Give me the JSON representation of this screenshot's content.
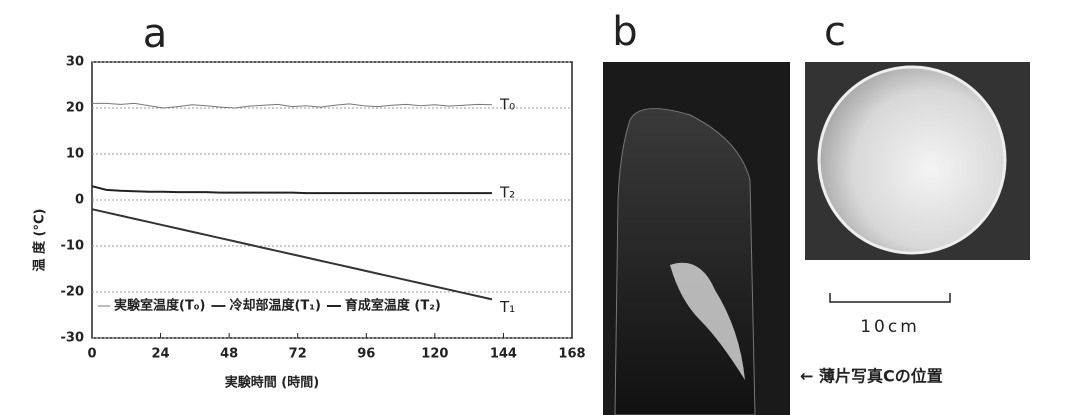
{
  "chart_data": {
    "type": "line",
    "title": "a",
    "xlabel": "実験時間 (時間)",
    "ylabel": "温 度 (°C)",
    "x": [
      0,
      5,
      10,
      15,
      20,
      25,
      30,
      35,
      40,
      45,
      50,
      55,
      60,
      65,
      70,
      75,
      80,
      85,
      90,
      95,
      100,
      105,
      110,
      115,
      120,
      125,
      130,
      135,
      140
    ],
    "series": [
      {
        "name": "T₀",
        "label": "実験室温度(T₀)",
        "color": "#777777",
        "values": [
          21,
          21,
          20.8,
          21,
          20.5,
          20,
          20.3,
          20.7,
          20.5,
          20.2,
          20,
          20.4,
          20.6,
          20.8,
          20.3,
          20.5,
          20.2,
          20.6,
          20.9,
          20.5,
          20.3,
          20.6,
          20.8,
          20.5,
          20.7,
          20.4,
          20.6,
          20.8,
          20.7
        ]
      },
      {
        "name": "T₁",
        "label": "冷却部温度(T₁)",
        "color": "#333333",
        "values": [
          -2,
          -2.7,
          -3.4,
          -4.1,
          -4.8,
          -5.5,
          -6.2,
          -6.9,
          -7.6,
          -8.3,
          -9,
          -9.7,
          -10.4,
          -11.1,
          -11.8,
          -12.5,
          -13.2,
          -13.9,
          -14.6,
          -15.3,
          -16,
          -16.7,
          -17.4,
          -18.1,
          -18.8,
          -19.5,
          -20.2,
          -20.9,
          -21.6
        ]
      },
      {
        "name": "T₂",
        "label": "育成室温度 (T₂)",
        "color": "#222222",
        "values": [
          3,
          2.2,
          2,
          1.9,
          1.8,
          1.8,
          1.7,
          1.7,
          1.7,
          1.6,
          1.6,
          1.6,
          1.6,
          1.6,
          1.6,
          1.5,
          1.5,
          1.5,
          1.5,
          1.5,
          1.5,
          1.5,
          1.5,
          1.5,
          1.5,
          1.5,
          1.5,
          1.5,
          1.5
        ]
      }
    ],
    "xlim": [
      0,
      168
    ],
    "xticks": [
      0,
      24,
      48,
      72,
      96,
      120,
      144,
      168
    ],
    "ylim": [
      -30,
      30
    ],
    "yticks": [
      -30,
      -20,
      -10,
      0,
      10,
      20,
      30
    ],
    "grid": true
  },
  "photos": {
    "b": "b",
    "c": "c",
    "scale_bar": "10cm",
    "arrow_note": "← 薄片写真Cの位置"
  }
}
